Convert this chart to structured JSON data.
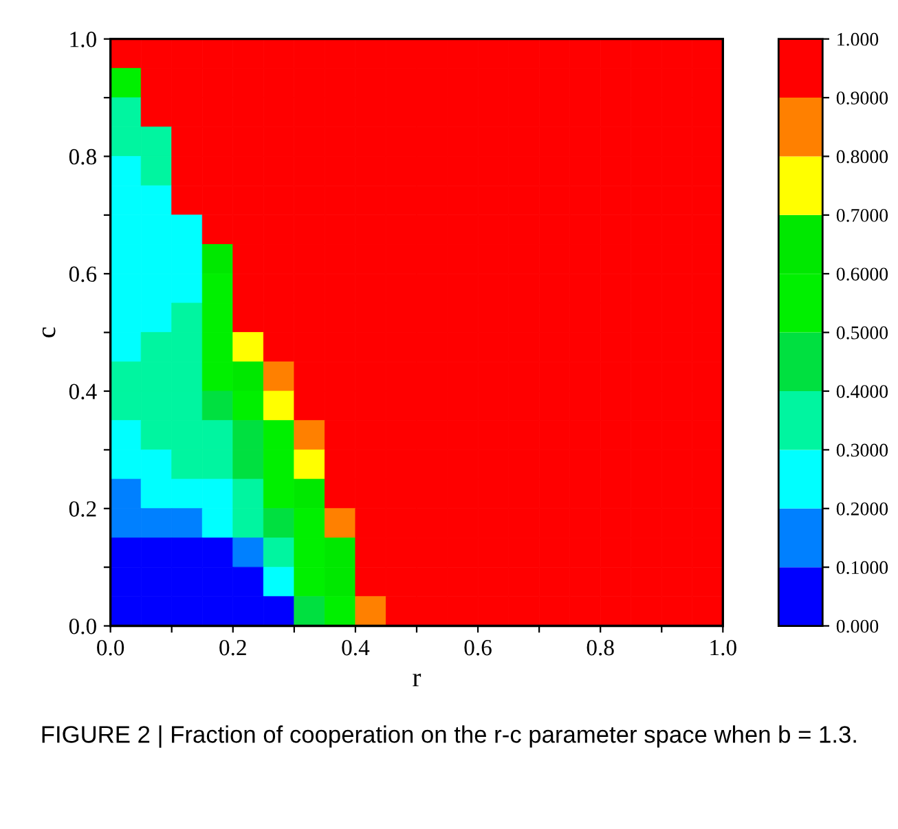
{
  "chart_data": {
    "type": "heatmap",
    "xlabel": "r",
    "ylabel": "c",
    "annotations": [
      "FIGURE 2 | Fraction of cooperation on the r-c parameter space when b = 1.3."
    ],
    "x": [
      0.025,
      0.075,
      0.125,
      0.175,
      0.225,
      0.275,
      0.325,
      0.375,
      0.425,
      0.475,
      0.525,
      0.575,
      0.625,
      0.675,
      0.725,
      0.775,
      0.825,
      0.875,
      0.925,
      0.975
    ],
    "y": [
      0.975,
      0.925,
      0.875,
      0.825,
      0.775,
      0.725,
      0.675,
      0.625,
      0.575,
      0.525,
      0.475,
      0.425,
      0.375,
      0.325,
      0.275,
      0.225,
      0.175,
      0.125,
      0.075,
      0.025
    ],
    "xlim": [
      0,
      1
    ],
    "ylim": [
      0,
      1
    ],
    "xticks": [
      {
        "value": 0,
        "label": "0.0"
      },
      {
        "value": 0.1,
        "label": null
      },
      {
        "value": 0.2,
        "label": "0.2"
      },
      {
        "value": 0.3,
        "label": null
      },
      {
        "value": 0.4,
        "label": "0.4"
      },
      {
        "value": 0.5,
        "label": null
      },
      {
        "value": 0.6,
        "label": "0.6"
      },
      {
        "value": 0.7,
        "label": null
      },
      {
        "value": 0.8,
        "label": "0.8"
      },
      {
        "value": 0.9,
        "label": null
      },
      {
        "value": 1,
        "label": "1.0"
      }
    ],
    "yticks": [
      {
        "value": 0,
        "label": "0.0"
      },
      {
        "value": 0.1,
        "label": null
      },
      {
        "value": 0.2,
        "label": "0.2"
      },
      {
        "value": 0.3,
        "label": null
      },
      {
        "value": 0.4,
        "label": "0.4"
      },
      {
        "value": 0.5,
        "label": null
      },
      {
        "value": 0.6,
        "label": "0.6"
      },
      {
        "value": 0.7,
        "label": null
      },
      {
        "value": 0.8,
        "label": "0.8"
      },
      {
        "value": 0.9,
        "label": null
      },
      {
        "value": 1,
        "label": "1.0"
      }
    ],
    "clim": [
      0,
      1
    ],
    "cticks": [
      {
        "value": 0,
        "label": "0.000"
      },
      {
        "value": 0.1,
        "label": "0.1000"
      },
      {
        "value": 0.2,
        "label": "0.2000"
      },
      {
        "value": 0.3,
        "label": "0.3000"
      },
      {
        "value": 0.4,
        "label": "0.4000"
      },
      {
        "value": 0.5,
        "label": "0.5000"
      },
      {
        "value": 0.6,
        "label": "0.6000"
      },
      {
        "value": 0.7,
        "label": "0.7000"
      },
      {
        "value": 0.8,
        "label": "0.8000"
      },
      {
        "value": 0.9,
        "label": "0.9000"
      },
      {
        "value": 1,
        "label": "1.000"
      }
    ],
    "colors": [
      "#0000ff",
      "#0080ff",
      "#00ffff",
      "#00f5a0",
      "#00e040",
      "#00f000",
      "#00e800",
      "#ffff00",
      "#ff8000",
      "#ff0000"
    ],
    "cells": [
      [
        0.95,
        0.95,
        0.95,
        0.95,
        0.95,
        0.95,
        0.95,
        0.95,
        0.95,
        0.95,
        0.95,
        0.95,
        0.95,
        0.95,
        0.95,
        0.95,
        0.95,
        0.95,
        0.95,
        0.95
      ],
      [
        0.55,
        0.95,
        0.95,
        0.95,
        0.95,
        0.95,
        0.95,
        0.95,
        0.95,
        0.95,
        0.95,
        0.95,
        0.95,
        0.95,
        0.95,
        0.95,
        0.95,
        0.95,
        0.95,
        0.95
      ],
      [
        0.35,
        0.95,
        0.95,
        0.95,
        0.95,
        0.95,
        0.95,
        0.95,
        0.95,
        0.95,
        0.95,
        0.95,
        0.95,
        0.95,
        0.95,
        0.95,
        0.95,
        0.95,
        0.95,
        0.95
      ],
      [
        0.35,
        0.35,
        0.95,
        0.95,
        0.95,
        0.95,
        0.95,
        0.95,
        0.95,
        0.95,
        0.95,
        0.95,
        0.95,
        0.95,
        0.95,
        0.95,
        0.95,
        0.95,
        0.95,
        0.95
      ],
      [
        0.25,
        0.35,
        0.95,
        0.95,
        0.95,
        0.95,
        0.95,
        0.95,
        0.95,
        0.95,
        0.95,
        0.95,
        0.95,
        0.95,
        0.95,
        0.95,
        0.95,
        0.95,
        0.95,
        0.95
      ],
      [
        0.25,
        0.25,
        0.95,
        0.95,
        0.95,
        0.95,
        0.95,
        0.95,
        0.95,
        0.95,
        0.95,
        0.95,
        0.95,
        0.95,
        0.95,
        0.95,
        0.95,
        0.95,
        0.95,
        0.95
      ],
      [
        0.25,
        0.25,
        0.25,
        0.95,
        0.95,
        0.95,
        0.95,
        0.95,
        0.95,
        0.95,
        0.95,
        0.95,
        0.95,
        0.95,
        0.95,
        0.95,
        0.95,
        0.95,
        0.95,
        0.95
      ],
      [
        0.25,
        0.25,
        0.25,
        0.65,
        0.95,
        0.95,
        0.95,
        0.95,
        0.95,
        0.95,
        0.95,
        0.95,
        0.95,
        0.95,
        0.95,
        0.95,
        0.95,
        0.95,
        0.95,
        0.95
      ],
      [
        0.25,
        0.25,
        0.25,
        0.55,
        0.95,
        0.95,
        0.95,
        0.95,
        0.95,
        0.95,
        0.95,
        0.95,
        0.95,
        0.95,
        0.95,
        0.95,
        0.95,
        0.95,
        0.95,
        0.95
      ],
      [
        0.25,
        0.25,
        0.35,
        0.55,
        0.95,
        0.95,
        0.95,
        0.95,
        0.95,
        0.95,
        0.95,
        0.95,
        0.95,
        0.95,
        0.95,
        0.95,
        0.95,
        0.95,
        0.95,
        0.95
      ],
      [
        0.25,
        0.35,
        0.35,
        0.55,
        0.75,
        0.95,
        0.95,
        0.95,
        0.95,
        0.95,
        0.95,
        0.95,
        0.95,
        0.95,
        0.95,
        0.95,
        0.95,
        0.95,
        0.95,
        0.95
      ],
      [
        0.35,
        0.35,
        0.35,
        0.55,
        0.65,
        0.85,
        0.95,
        0.95,
        0.95,
        0.95,
        0.95,
        0.95,
        0.95,
        0.95,
        0.95,
        0.95,
        0.95,
        0.95,
        0.95,
        0.95
      ],
      [
        0.35,
        0.35,
        0.35,
        0.45,
        0.55,
        0.75,
        0.95,
        0.95,
        0.95,
        0.95,
        0.95,
        0.95,
        0.95,
        0.95,
        0.95,
        0.95,
        0.95,
        0.95,
        0.95,
        0.95
      ],
      [
        0.25,
        0.35,
        0.35,
        0.35,
        0.45,
        0.55,
        0.85,
        0.95,
        0.95,
        0.95,
        0.95,
        0.95,
        0.95,
        0.95,
        0.95,
        0.95,
        0.95,
        0.95,
        0.95,
        0.95
      ],
      [
        0.25,
        0.25,
        0.35,
        0.35,
        0.45,
        0.55,
        0.75,
        0.95,
        0.95,
        0.95,
        0.95,
        0.95,
        0.95,
        0.95,
        0.95,
        0.95,
        0.95,
        0.95,
        0.95,
        0.95
      ],
      [
        0.15,
        0.25,
        0.25,
        0.25,
        0.35,
        0.55,
        0.65,
        0.95,
        0.95,
        0.95,
        0.95,
        0.95,
        0.95,
        0.95,
        0.95,
        0.95,
        0.95,
        0.95,
        0.95,
        0.95
      ],
      [
        0.15,
        0.15,
        0.15,
        0.25,
        0.35,
        0.45,
        0.55,
        0.85,
        0.95,
        0.95,
        0.95,
        0.95,
        0.95,
        0.95,
        0.95,
        0.95,
        0.95,
        0.95,
        0.95,
        0.95
      ],
      [
        0.05,
        0.05,
        0.05,
        0.05,
        0.15,
        0.35,
        0.55,
        0.65,
        0.95,
        0.95,
        0.95,
        0.95,
        0.95,
        0.95,
        0.95,
        0.95,
        0.95,
        0.95,
        0.95,
        0.95
      ],
      [
        0.05,
        0.05,
        0.05,
        0.05,
        0.05,
        0.25,
        0.55,
        0.65,
        0.95,
        0.95,
        0.95,
        0.95,
        0.95,
        0.95,
        0.95,
        0.95,
        0.95,
        0.95,
        0.95,
        0.95
      ],
      [
        0.05,
        0.05,
        0.05,
        0.05,
        0.05,
        0.05,
        0.45,
        0.55,
        0.85,
        0.95,
        0.95,
        0.95,
        0.95,
        0.95,
        0.95,
        0.95,
        0.95,
        0.95,
        0.95,
        0.95
      ]
    ]
  }
}
